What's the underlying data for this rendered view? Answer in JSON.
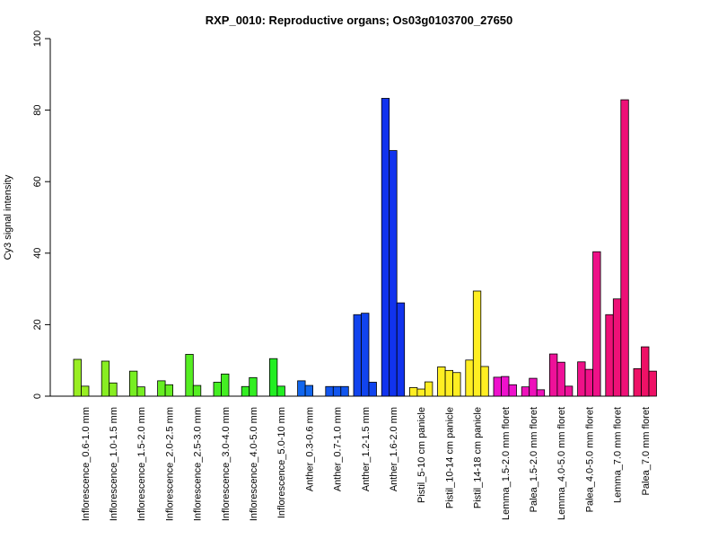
{
  "chart_data": {
    "type": "bar",
    "title": "RXP_0010: Reproductive organs; Os03g0103700_27650",
    "xlabel": "",
    "ylabel": "Cy3 signal intensity",
    "ylim": [
      0,
      100
    ],
    "yticks": [
      0,
      20,
      40,
      60,
      80,
      100
    ],
    "legend": "none",
    "grid": false,
    "groups": [
      {
        "label": "Inflorescence_0.6-1.0 mm",
        "color": "#99ee22",
        "values": [
          10.3,
          2.8
        ]
      },
      {
        "label": "Inflorescence_1.0-1.5 mm",
        "color": "#88ee22",
        "values": [
          9.8,
          3.7
        ]
      },
      {
        "label": "Inflorescence_1.5-2.0 mm",
        "color": "#77ee22",
        "values": [
          7.0,
          2.6
        ]
      },
      {
        "label": "Inflorescence_2.0-2.5 mm",
        "color": "#66ee22",
        "values": [
          4.3,
          3.2
        ]
      },
      {
        "label": "Inflorescence_2.5-3.0 mm",
        "color": "#55ee22",
        "values": [
          11.7,
          3.0
        ]
      },
      {
        "label": "Inflorescence_3.0-4.0 mm",
        "color": "#44ee22",
        "values": [
          3.9,
          6.2
        ]
      },
      {
        "label": "Inflorescence_4.0-5.0 mm",
        "color": "#33ee22",
        "values": [
          2.7,
          5.2
        ]
      },
      {
        "label": "Inflorescence_5.0-10 mm",
        "color": "#22ee22",
        "values": [
          10.5,
          2.8
        ]
      },
      {
        "label": "Anther_0.3-0.6 mm",
        "color": "#1166ee",
        "values": [
          4.3,
          3.0
        ]
      },
      {
        "label": "Anther_0.7-1.0 mm",
        "color": "#1155ee",
        "values": [
          2.7,
          2.7,
          2.7
        ]
      },
      {
        "label": "Anther_1.2-1.5 mm",
        "color": "#1144ee",
        "values": [
          22.8,
          23.2,
          3.9
        ]
      },
      {
        "label": "Anther_1.6-2.0 mm",
        "color": "#1133ee",
        "values": [
          83.3,
          68.7,
          26.1
        ]
      },
      {
        "label": "Pistil_5-10 cm panicle",
        "color": "#ffee22",
        "values": [
          2.4,
          2.0,
          4.0
        ]
      },
      {
        "label": "Pistil_10-14 cm panicle",
        "color": "#ffee22",
        "values": [
          8.2,
          7.2,
          6.6
        ]
      },
      {
        "label": "Pistil_14-18 cm panicle",
        "color": "#ffee22",
        "values": [
          10.1,
          29.4,
          8.3
        ]
      },
      {
        "label": "Lemma_1.5-2.0 mm floret",
        "color": "#ee11cc",
        "values": [
          5.3,
          5.5,
          3.2
        ]
      },
      {
        "label": "Palea_1.5-2.0 mm floret",
        "color": "#ee11bb",
        "values": [
          2.6,
          5.0,
          1.8
        ]
      },
      {
        "label": "Lemma_4.0-5.0 mm floret",
        "color": "#ee1199",
        "values": [
          11.8,
          9.5,
          2.8
        ]
      },
      {
        "label": "Palea_4.0-5.0 mm floret",
        "color": "#ee1188",
        "values": [
          9.6,
          7.5,
          40.4
        ]
      },
      {
        "label": "Lemma_7.0 mm floret",
        "color": "#ee1177",
        "values": [
          22.8,
          27.2,
          82.9
        ]
      },
      {
        "label": "Palea_7.0 mm floret",
        "color": "#ee1166",
        "values": [
          7.7,
          13.8,
          7.0
        ]
      }
    ]
  }
}
